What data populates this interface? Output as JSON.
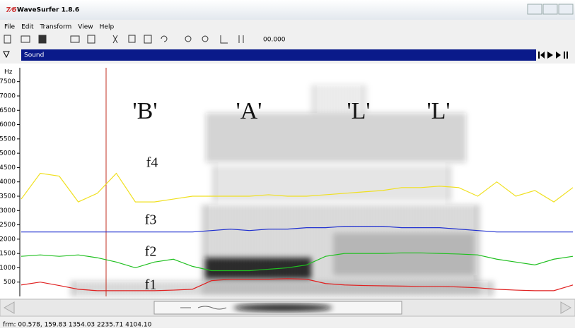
{
  "window": {
    "title": "WaveSurfer 1.8.6"
  },
  "menu": [
    "File",
    "Edit",
    "Transform",
    "View",
    "Help"
  ],
  "toolbar": {
    "time": "00.000"
  },
  "pane": {
    "title": "Sound"
  },
  "status": "frm: 00.578, 159.83 1354.03 2235.71 4104.10",
  "chart_data": {
    "type": "line",
    "y_label": "Hz",
    "annotations": [
      "'B'",
      "'A'",
      "'L'",
      "'L'"
    ],
    "ylim": [
      0,
      8000
    ],
    "yticks": [
      500,
      1000,
      1500,
      2000,
      2500,
      3000,
      3500,
      4000,
      4500,
      5000,
      5500,
      6000,
      6500,
      7000,
      7500
    ],
    "series": [
      {
        "name": "f1",
        "color": "#e02020",
        "values": [
          400,
          500,
          380,
          250,
          200,
          200,
          200,
          200,
          220,
          250,
          550,
          600,
          600,
          600,
          620,
          600,
          450,
          400,
          380,
          370,
          360,
          350,
          350,
          330,
          300,
          250,
          220,
          200,
          200,
          400
        ]
      },
      {
        "name": "f2",
        "color": "#20c020",
        "values": [
          1400,
          1450,
          1400,
          1450,
          1350,
          1200,
          1000,
          1200,
          1300,
          1050,
          900,
          900,
          900,
          950,
          1000,
          1100,
          1400,
          1500,
          1500,
          1500,
          1520,
          1520,
          1500,
          1480,
          1450,
          1300,
          1200,
          1100,
          1300,
          1400
        ]
      },
      {
        "name": "f3",
        "color": "#2030d0",
        "values": [
          2250,
          2250,
          2250,
          2250,
          2250,
          2250,
          2250,
          2250,
          2250,
          2250,
          2300,
          2350,
          2300,
          2350,
          2350,
          2400,
          2400,
          2450,
          2450,
          2450,
          2400,
          2400,
          2400,
          2350,
          2300,
          2250,
          2250,
          2250,
          2250,
          2250
        ]
      },
      {
        "name": "f4",
        "color": "#f0e020",
        "values": [
          3400,
          4300,
          4200,
          3300,
          3600,
          4300,
          3300,
          3300,
          3400,
          3500,
          3500,
          3500,
          3500,
          3550,
          3500,
          3500,
          3550,
          3600,
          3650,
          3700,
          3800,
          3800,
          3850,
          3800,
          3500,
          4000,
          3500,
          3700,
          3300,
          3800
        ]
      }
    ]
  }
}
